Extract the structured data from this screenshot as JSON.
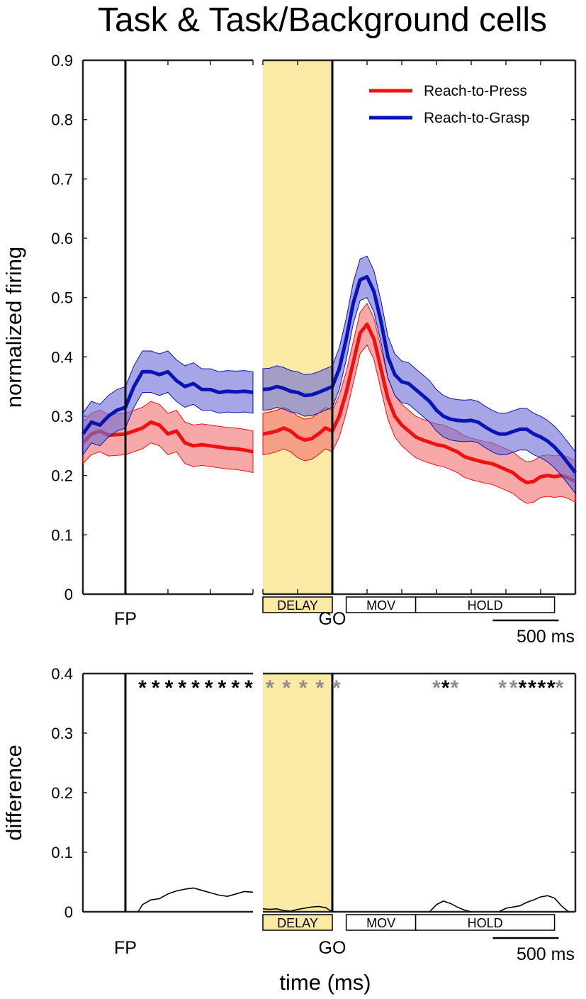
{
  "chart_data": [
    {
      "type": "line",
      "title": "Task & Task/Background cells",
      "ylabel": "normalized firing",
      "xlabel": "",
      "ylim": [
        0,
        0.9
      ],
      "yticks": [
        "0",
        "0.1",
        "0.2",
        "0.3",
        "0.4",
        "0.5",
        "0.6",
        "0.7",
        "0.8",
        "0.9"
      ],
      "x_unit": "ms",
      "x_segments": [
        {
          "name": "FP-aligned",
          "x_range": [
            -500,
            1500
          ],
          "event": "FP",
          "event_x": 0
        },
        {
          "name": "GO-aligned",
          "x_range": [
            -1000,
            3500
          ],
          "event": "GO",
          "event_x": 0
        }
      ],
      "epochs": [
        {
          "label": "DELAY",
          "segment": 1,
          "start": -1000,
          "end": 0,
          "shaded": true
        },
        {
          "label": "MOV",
          "segment": 1,
          "start": 200,
          "end": 1200
        },
        {
          "label": "HOLD",
          "segment": 1,
          "start": 1200,
          "end": 3200
        }
      ],
      "scalebar": "500 ms",
      "legend": {
        "position": "top-right",
        "entries": [
          "Reach-to-Press",
          "Reach-to-Grasp"
        ]
      },
      "series": [
        {
          "name": "Reach-to-Press",
          "color": "#ee1111",
          "band": "#f07373",
          "sem": 0.035,
          "segments": [
            {
              "x": [
                -500,
                -400,
                -300,
                -200,
                0,
                100,
                200,
                300,
                400,
                500,
                600,
                700,
                800,
                900,
                1000,
                1100,
                1200,
                1300,
                1400,
                1500
              ],
              "y": [
                0.255,
                0.27,
                0.275,
                0.268,
                0.27,
                0.275,
                0.28,
                0.29,
                0.285,
                0.27,
                0.275,
                0.255,
                0.25,
                0.252,
                0.25,
                0.248,
                0.246,
                0.245,
                0.243,
                0.24
              ]
            },
            {
              "x": [
                -1000,
                -900,
                -800,
                -700,
                -600,
                -500,
                -400,
                -300,
                -200,
                -100,
                0,
                100,
                200,
                300,
                400,
                500,
                600,
                700,
                800,
                900,
                1000,
                1100,
                1200,
                1300,
                1400,
                1500,
                1600,
                1700,
                1800,
                1900,
                2000,
                2100,
                2200,
                2300,
                2400,
                2500,
                2600,
                2700,
                2800,
                2900,
                3000,
                3100,
                3200,
                3300,
                3400,
                3500
              ],
              "y": [
                0.27,
                0.272,
                0.275,
                0.28,
                0.275,
                0.265,
                0.26,
                0.262,
                0.27,
                0.28,
                0.275,
                0.3,
                0.34,
                0.39,
                0.44,
                0.455,
                0.43,
                0.38,
                0.33,
                0.3,
                0.285,
                0.275,
                0.265,
                0.26,
                0.256,
                0.252,
                0.25,
                0.245,
                0.24,
                0.232,
                0.228,
                0.225,
                0.222,
                0.22,
                0.215,
                0.21,
                0.205,
                0.195,
                0.188,
                0.19,
                0.198,
                0.2,
                0.198,
                0.2,
                0.196,
                0.19
              ]
            }
          ]
        },
        {
          "name": "Reach-to-Grasp",
          "color": "#0a14b4",
          "band": "#6f6fd6",
          "sem": 0.035,
          "segments": [
            {
              "x": [
                -500,
                -400,
                -300,
                -200,
                -100,
                0,
                100,
                200,
                300,
                400,
                500,
                600,
                700,
                800,
                900,
                1000,
                1100,
                1200,
                1300,
                1400,
                1500
              ],
              "y": [
                0.27,
                0.29,
                0.285,
                0.3,
                0.31,
                0.315,
                0.35,
                0.375,
                0.375,
                0.37,
                0.375,
                0.36,
                0.35,
                0.355,
                0.345,
                0.345,
                0.34,
                0.342,
                0.341,
                0.342,
                0.34
              ]
            },
            {
              "x": [
                -1000,
                -900,
                -800,
                -700,
                -600,
                -500,
                -400,
                -300,
                -200,
                -100,
                0,
                100,
                200,
                300,
                400,
                500,
                600,
                700,
                800,
                900,
                1000,
                1100,
                1200,
                1300,
                1400,
                1500,
                1600,
                1700,
                1800,
                1900,
                2000,
                2100,
                2200,
                2300,
                2400,
                2500,
                2600,
                2700,
                2800,
                2900,
                3000,
                3100,
                3200,
                3300,
                3400,
                3500
              ],
              "y": [
                0.345,
                0.346,
                0.35,
                0.347,
                0.342,
                0.34,
                0.335,
                0.336,
                0.34,
                0.345,
                0.35,
                0.38,
                0.43,
                0.49,
                0.53,
                0.535,
                0.51,
                0.46,
                0.4,
                0.37,
                0.358,
                0.355,
                0.345,
                0.335,
                0.325,
                0.31,
                0.3,
                0.295,
                0.293,
                0.292,
                0.293,
                0.29,
                0.282,
                0.275,
                0.27,
                0.27,
                0.274,
                0.278,
                0.278,
                0.27,
                0.265,
                0.258,
                0.248,
                0.235,
                0.22,
                0.205
              ]
            }
          ]
        }
      ]
    },
    {
      "type": "line",
      "ylabel": "difference",
      "xlabel": "time (ms)",
      "ylim": [
        0,
        0.4
      ],
      "yticks": [
        "0",
        "0.1",
        "0.2",
        "0.3",
        "0.4"
      ],
      "x_segments": [
        {
          "name": "FP-aligned",
          "x_range": [
            -500,
            1500
          ],
          "event": "FP",
          "event_x": 0
        },
        {
          "name": "GO-aligned",
          "x_range": [
            -1000,
            3500
          ],
          "event": "GO",
          "event_x": 0
        }
      ],
      "epochs": [
        {
          "label": "DELAY",
          "segment": 1,
          "start": -1000,
          "end": 0,
          "shaded": true
        },
        {
          "label": "MOV",
          "segment": 1,
          "start": 200,
          "end": 1200
        },
        {
          "label": "HOLD",
          "segment": 1,
          "start": 1200,
          "end": 3200
        }
      ],
      "scalebar": "500 ms",
      "series": [
        {
          "name": "difference",
          "color": "#000000",
          "segments": [
            {
              "x": [
                150,
                200,
                300,
                400,
                500,
                600,
                700,
                800,
                900,
                1000,
                1100,
                1200,
                1300,
                1400,
                1500
              ],
              "y": [
                0.0,
                0.012,
                0.02,
                0.022,
                0.03,
                0.035,
                0.038,
                0.04,
                0.036,
                0.032,
                0.028,
                0.026,
                0.03,
                0.034,
                0.033
              ]
            },
            {
              "x": [
                -1000,
                -900,
                -800,
                -700,
                -600,
                -500,
                -400,
                -300,
                -200,
                -100,
                0
              ],
              "y": [
                0.005,
                0.004,
                0.005,
                0.002,
                0.001,
                0.004,
                0.006,
                0.008,
                0.009,
                0.007,
                0.0
              ]
            },
            {
              "x": [
                1400,
                1500,
                1600,
                1700,
                1800,
                1900,
                2000
              ],
              "y": [
                0.0,
                0.012,
                0.018,
                0.014,
                0.008,
                0.003,
                0.0
              ]
            },
            {
              "x": [
                2400,
                2500,
                2600,
                2700,
                2800,
                2900,
                3000,
                3100,
                3200,
                3300,
                3400
              ],
              "y": [
                0.0,
                0.006,
                0.008,
                0.01,
                0.016,
                0.02,
                0.025,
                0.027,
                0.023,
                0.01,
                0.0
              ]
            }
          ]
        }
      ],
      "significance_markers": [
        {
          "segment": 0,
          "start": 200,
          "end": 1450,
          "count": 9,
          "color": "black"
        },
        {
          "segment": 1,
          "start": -900,
          "end": -180,
          "count": 4,
          "color": "gray"
        },
        {
          "segment": 1,
          "start": 60,
          "end": 60,
          "count": 1,
          "color": "gray"
        },
        {
          "segment": 1,
          "start": 1500,
          "end": 1500,
          "count": 1,
          "color": "gray"
        },
        {
          "segment": 1,
          "start": 1630,
          "end": 1630,
          "count": 1,
          "color": "black"
        },
        {
          "segment": 1,
          "start": 1760,
          "end": 1760,
          "count": 1,
          "color": "gray"
        },
        {
          "segment": 1,
          "start": 2450,
          "end": 2610,
          "count": 2,
          "color": "gray"
        },
        {
          "segment": 1,
          "start": 2740,
          "end": 3150,
          "count": 4,
          "color": "black"
        },
        {
          "segment": 1,
          "start": 3270,
          "end": 3270,
          "count": 1,
          "color": "gray"
        }
      ]
    }
  ]
}
